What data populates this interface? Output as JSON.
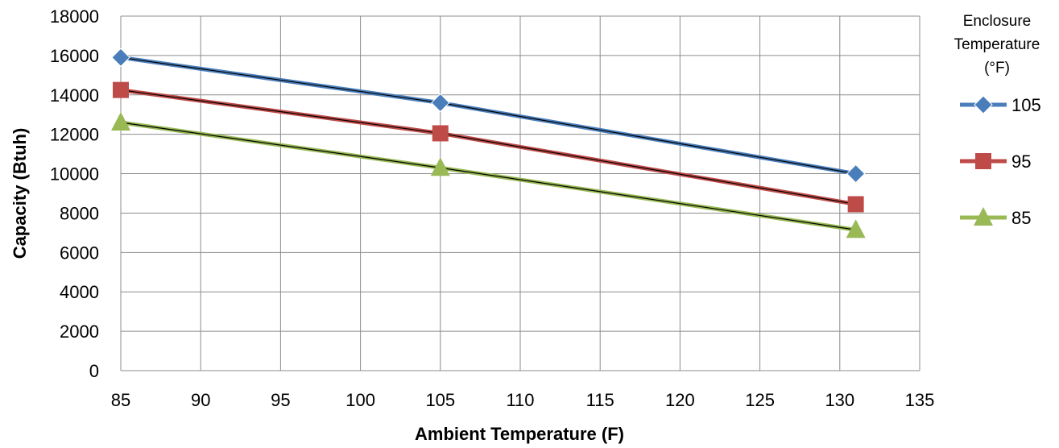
{
  "chart_data": {
    "type": "line",
    "title": "",
    "xlabel": "Ambient Temperature (F)",
    "ylabel": "Capacity (Btuh)",
    "xlim": [
      85,
      135
    ],
    "ylim": [
      0,
      18000
    ],
    "x_ticks": [
      "85",
      "90",
      "95",
      "100",
      "105",
      "110",
      "115",
      "120",
      "125",
      "130",
      "135"
    ],
    "y_ticks": [
      "0",
      "2000",
      "4000",
      "6000",
      "8000",
      "10000",
      "12000",
      "14000",
      "16000",
      "18000"
    ],
    "grid": true,
    "legend": {
      "title_lines": [
        "Enclosure",
        "Temperature",
        "(°F)"
      ],
      "position": "right"
    },
    "series": [
      {
        "name": "105",
        "color": "#4A7EBB",
        "marker": "diamond",
        "x": [
          85,
          105,
          131
        ],
        "y": [
          15900,
          13600,
          10000
        ]
      },
      {
        "name": "95",
        "color": "#BE4B48",
        "marker": "square",
        "x": [
          85,
          105,
          131
        ],
        "y": [
          14250,
          12050,
          8450
        ]
      },
      {
        "name": "85",
        "color": "#98B954",
        "marker": "triangle",
        "x": [
          85,
          105,
          131
        ],
        "y": [
          12600,
          10300,
          7150
        ]
      }
    ]
  }
}
